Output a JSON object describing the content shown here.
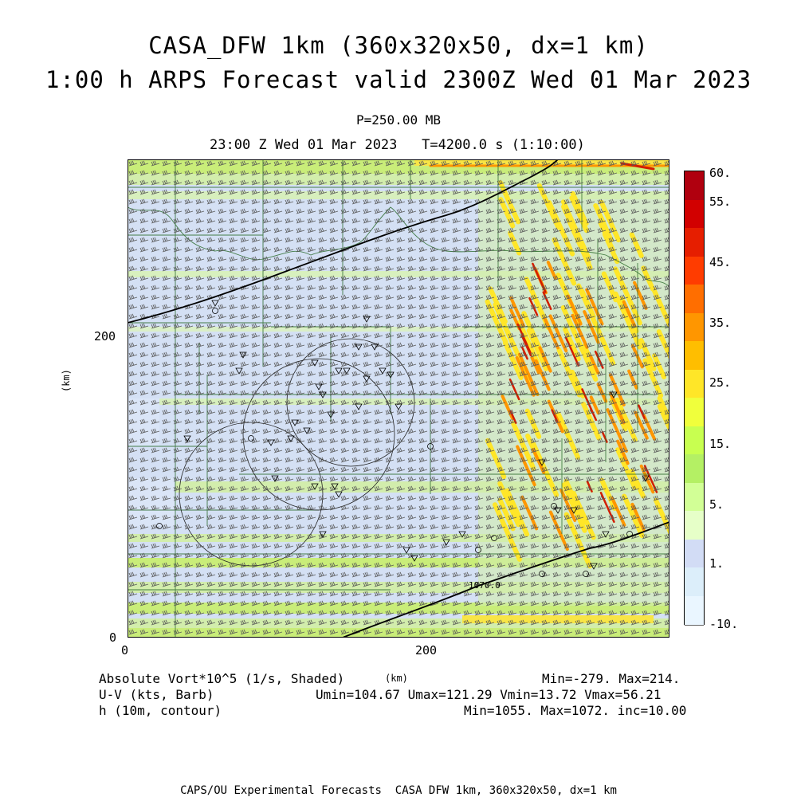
{
  "header": {
    "title_line1": "CASA_DFW 1km (360x320x50, dx=1 km)",
    "title_line2": "1:00 h ARPS Forecast valid 2300Z Wed 01 Mar 2023",
    "pressure": "P=250.00 MB",
    "valid_line": "23:00 Z Wed 01 Mar 2023   T=4200.0 s (1:10:00)"
  },
  "axes": {
    "x_ticks": [
      "0",
      "200"
    ],
    "y_ticks": [
      "200",
      "0"
    ],
    "x_unit": "(km)",
    "y_unit": "(km)"
  },
  "colorbar": {
    "labels": [
      "60.",
      "55.",
      "45.",
      "35.",
      "25.",
      "15.",
      "5.",
      "1.",
      "-10."
    ],
    "colors": [
      "#b0000f",
      "#d20000",
      "#e61e00",
      "#ff3c00",
      "#ff6e00",
      "#ff9600",
      "#ffbe00",
      "#ffe628",
      "#f0ff3c",
      "#c8ff50",
      "#b4f064",
      "#d2ff96",
      "#e6ffc8",
      "#d2dcf5",
      "#dceefa",
      "#eaf6ff"
    ]
  },
  "footer": {
    "left_line1": "Absolute Vort*10^5 (1/s, Shaded)",
    "left_line2": "U-V (kts, Barb)",
    "left_line3": "h (10m, contour)",
    "right_line1": "Min=-279. Max=214.",
    "right_line2": "Umin=104.67 Umax=121.29 Vmin=13.72 Vmax=56.21",
    "right_line3": "Min=1055. Max=1072. inc=10.00",
    "credit": "CAPS/OU Experimental Forecasts  CASA DFW 1km, 360x320x50, dx=1 km"
  },
  "field_colors": {
    "background": "#d4e0f4",
    "low_green": "#d2f0a0",
    "mid_green": "#c8f064",
    "yellow": "#ffe628",
    "orange": "#ff9600",
    "red": "#d21e00",
    "boundary": "#2a6a2a",
    "barb": "#000000"
  },
  "contour_label": "1070.0"
}
